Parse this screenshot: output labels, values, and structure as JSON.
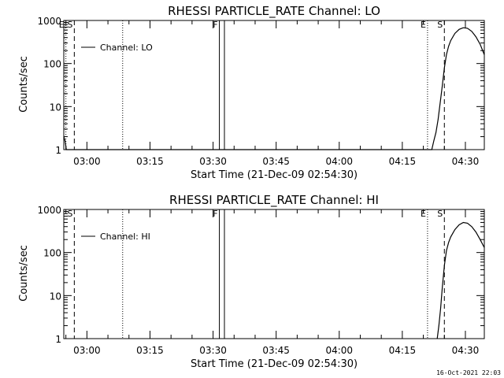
{
  "footer_timestamp": "16-Oct-2021 22:03",
  "chart_data": [
    {
      "type": "line",
      "title": "RHESSI PARTICLE_RATE Channel: LO",
      "xlabel": "Start Time (21-Dec-09 02:54:30)",
      "ylabel": "Counts/sec",
      "yscale": "log",
      "ylim": [
        1,
        1000
      ],
      "xlim_minutes_after_start": [
        0,
        100
      ],
      "x_tick_labels": [
        "03:00",
        "03:15",
        "03:30",
        "03:45",
        "04:00",
        "04:15",
        "04:30"
      ],
      "x_tick_minutes": [
        5.5,
        20.5,
        35.5,
        50.5,
        65.5,
        80.5,
        95.5
      ],
      "y_tick_labels": [
        "1",
        "10",
        "100",
        "1000"
      ],
      "y_tick_values": [
        1,
        10,
        100,
        1000
      ],
      "legend": {
        "label": "Channel: LO",
        "position": "top-left"
      },
      "markers": [
        {
          "label": "E",
          "minute": 0.5,
          "style": "dotted"
        },
        {
          "label": "S",
          "minute": 2.5,
          "style": "dashed"
        },
        {
          "label": "",
          "minute": 14.0,
          "style": "dotted"
        },
        {
          "label": "F",
          "minute": 37.0,
          "style": "solid"
        },
        {
          "label": "",
          "minute": 38.2,
          "style": "solid"
        },
        {
          "label": "E",
          "minute": 86.5,
          "style": "dotted"
        },
        {
          "label": "S",
          "minute": 90.5,
          "style": "dashed"
        },
        {
          "label": "",
          "minute": 100.0,
          "style": "dashdot"
        }
      ],
      "series": [
        {
          "name": "Channel: LO",
          "x": [
            0,
            0.3,
            0.6,
            87.5,
            88.0,
            88.5,
            89.0,
            89.5,
            90.0,
            90.5,
            91.0,
            91.5,
            92.0,
            93.0,
            94.0,
            95.0,
            96.0,
            97.0,
            98.0,
            99.0,
            100.0
          ],
          "y": [
            2,
            1.6,
            1,
            1,
            1.6,
            2.5,
            5,
            12,
            30,
            80,
            160,
            250,
            340,
            500,
            620,
            680,
            660,
            560,
            420,
            280,
            160
          ]
        }
      ]
    },
    {
      "type": "line",
      "title": "RHESSI PARTICLE_RATE Channel: HI",
      "xlabel": "Start Time (21-Dec-09 02:54:30)",
      "ylabel": "Counts/sec",
      "yscale": "log",
      "ylim": [
        1,
        1000
      ],
      "xlim_minutes_after_start": [
        0,
        100
      ],
      "x_tick_labels": [
        "03:00",
        "03:15",
        "03:30",
        "03:45",
        "04:00",
        "04:15",
        "04:30"
      ],
      "x_tick_minutes": [
        5.5,
        20.5,
        35.5,
        50.5,
        65.5,
        80.5,
        95.5
      ],
      "y_tick_labels": [
        "1",
        "10",
        "100",
        "1000"
      ],
      "y_tick_values": [
        1,
        10,
        100,
        1000
      ],
      "legend": {
        "label": "Channel: HI",
        "position": "top-left"
      },
      "markers": [
        {
          "label": "S",
          "minute": 2.5,
          "style": "dashed"
        },
        {
          "label": "",
          "minute": 14.0,
          "style": "dotted"
        },
        {
          "label": "F",
          "minute": 37.0,
          "style": "solid"
        },
        {
          "label": "",
          "minute": 38.2,
          "style": "solid"
        },
        {
          "label": "E",
          "minute": 86.5,
          "style": "dotted"
        },
        {
          "label": "S",
          "minute": 90.5,
          "style": "dashed"
        },
        {
          "label": "",
          "minute": 100.0,
          "style": "dashdot"
        }
      ],
      "series": [
        {
          "name": "Channel: HI",
          "x": [
            88.8,
            89.2,
            89.6,
            90.0,
            90.5,
            91.0,
            91.5,
            92.0,
            93.0,
            94.0,
            95.0,
            96.0,
            97.0,
            98.0,
            99.0,
            100.0
          ],
          "y": [
            1,
            2,
            5,
            15,
            50,
            110,
            170,
            230,
            340,
            440,
            500,
            480,
            400,
            300,
            200,
            130
          ]
        }
      ]
    }
  ]
}
